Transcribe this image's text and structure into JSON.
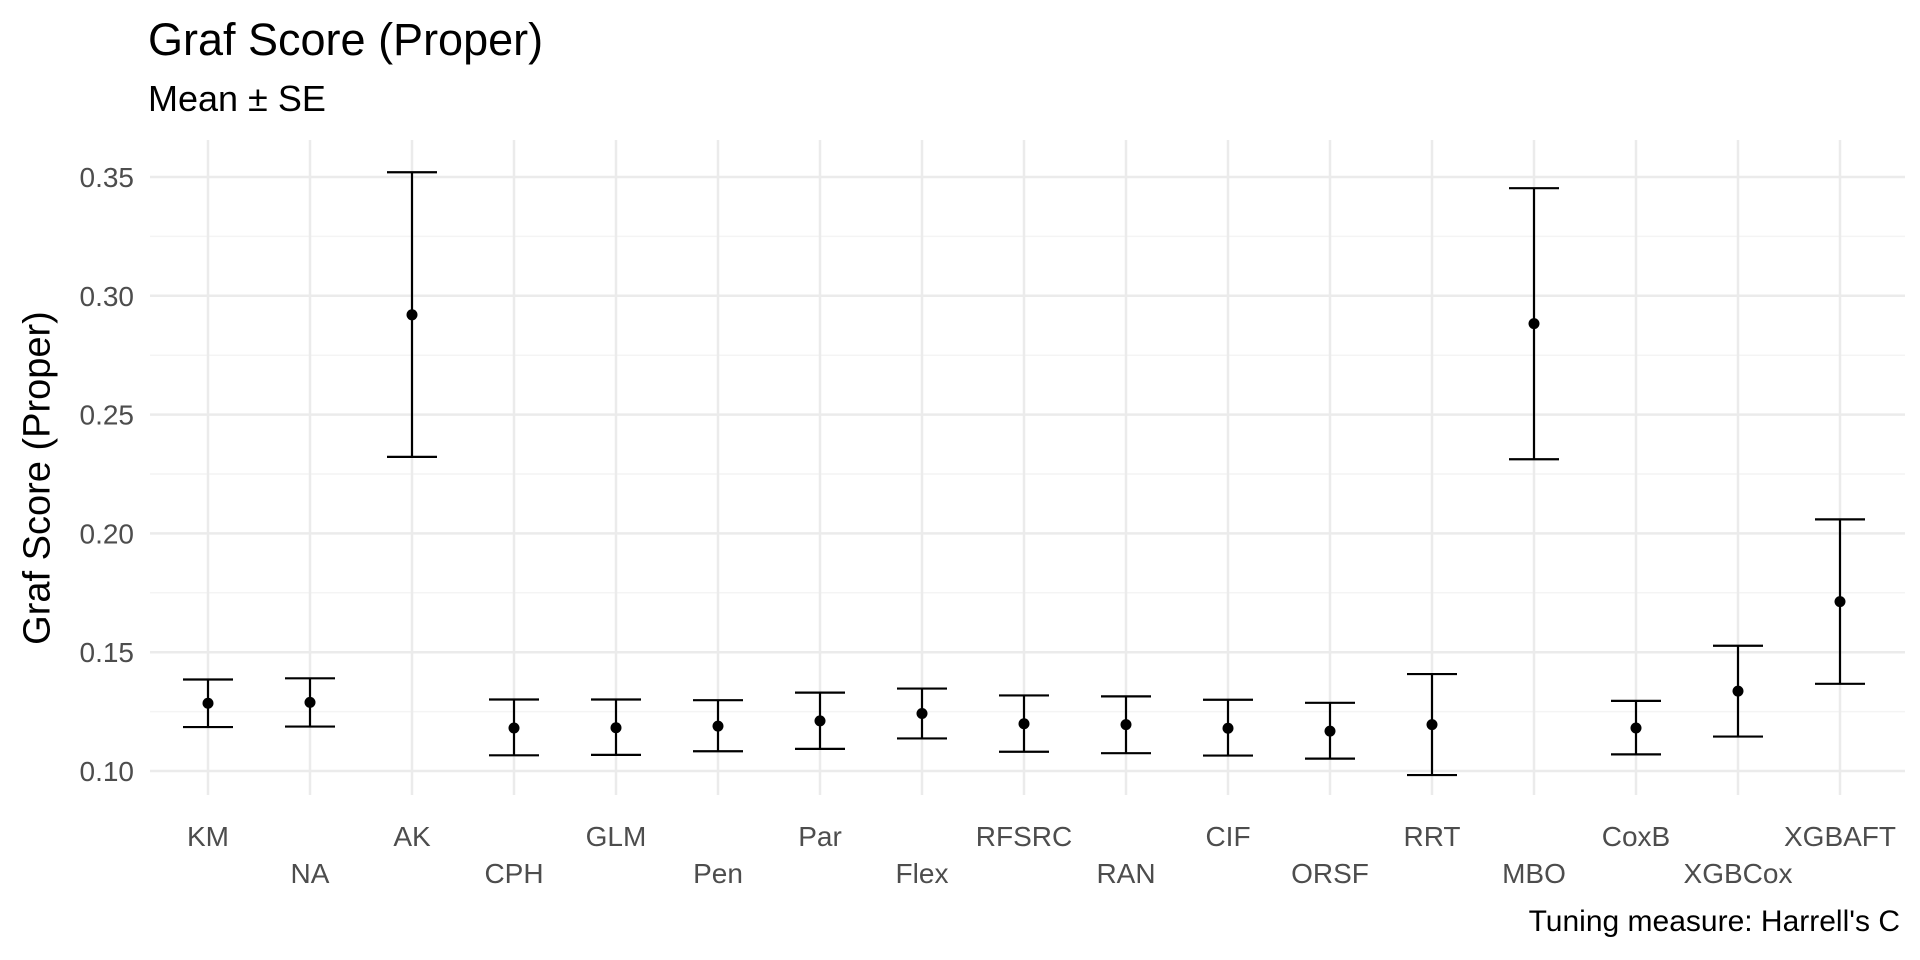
{
  "chart_data": {
    "type": "errorbar",
    "title": "Graf Score (Proper)",
    "subtitle": "Mean ± SE",
    "xlabel": "",
    "ylabel": "Graf Score (Proper)",
    "caption": "Tuning measure: Harrell's C",
    "ylim": [
      0.088,
      0.36
    ],
    "yticks": [
      "0.10",
      "0.15",
      "0.20",
      "0.25",
      "0.30",
      "0.35"
    ],
    "grid": true,
    "categories": [
      "KM",
      "NA",
      "AK",
      "CPH",
      "GLM",
      "Pen",
      "Par",
      "Flex",
      "RFSRC",
      "RAN",
      "CIF",
      "ORSF",
      "RRT",
      "MBO",
      "CoxB",
      "XGBCox",
      "XGBAFT"
    ],
    "series": [
      {
        "name": "Mean ± SE",
        "mean": [
          0.1285,
          0.1289,
          0.292,
          0.1181,
          0.1182,
          0.1189,
          0.1211,
          0.1242,
          0.1199,
          0.1195,
          0.118,
          0.1168,
          0.1195,
          0.2883,
          0.1181,
          0.1336,
          0.1713
        ],
        "lower": [
          0.1185,
          0.1187,
          0.2322,
          0.1066,
          0.1068,
          0.1083,
          0.1093,
          0.1137,
          0.1081,
          0.1075,
          0.1065,
          0.1052,
          0.0983,
          0.2312,
          0.107,
          0.1145,
          0.1367
        ],
        "upper": [
          0.1385,
          0.139,
          0.352,
          0.1301,
          0.1301,
          0.1298,
          0.133,
          0.1347,
          0.1318,
          0.1314,
          0.13,
          0.1287,
          0.1408,
          0.3453,
          0.1295,
          0.1527,
          0.2059
        ]
      }
    ]
  },
  "colors": {
    "grid_major": "#ebebeb",
    "grid_minor": "#f4f4f4",
    "mark": "#000000",
    "tick_text": "#4d4d4d"
  }
}
